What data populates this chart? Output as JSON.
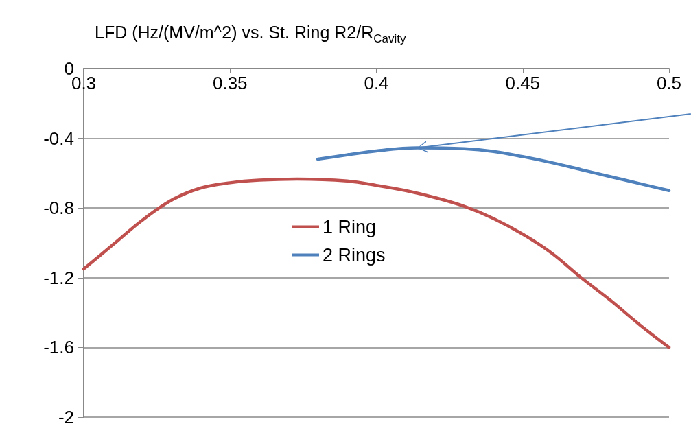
{
  "chart_data": {
    "type": "line",
    "title": "LFD (Hz/(MV/m^2) vs. St. Ring R2/R$_{Cavity}$",
    "xlim": [
      0.3,
      0.5
    ],
    "xticks": [
      0.3,
      0.35,
      0.4,
      0.45,
      0.5
    ],
    "ylim": [
      -2,
      0
    ],
    "yticks": [
      -2,
      -1.6,
      -1.2,
      -0.8,
      -0.4,
      0
    ],
    "grid": "y",
    "legend": "center",
    "marker": "none",
    "line_style": "solid",
    "series": [
      {
        "name": "1 Ring",
        "color": "#c0504d",
        "x": [
          0.3,
          0.31,
          0.32,
          0.33,
          0.34,
          0.35,
          0.36,
          0.373,
          0.39,
          0.4,
          0.41,
          0.42,
          0.43,
          0.44,
          0.45,
          0.46,
          0.47,
          0.48,
          0.49,
          0.5
        ],
        "values": [
          -1.15,
          -1.01,
          -0.87,
          -0.755,
          -0.685,
          -0.655,
          -0.64,
          -0.634,
          -0.645,
          -0.67,
          -0.7,
          -0.74,
          -0.79,
          -0.86,
          -0.95,
          -1.06,
          -1.2,
          -1.33,
          -1.47,
          -1.6
        ]
      },
      {
        "name": "2 Rings",
        "color": "#4f81bd",
        "x": [
          0.38,
          0.39,
          0.4,
          0.414,
          0.43,
          0.44,
          0.45,
          0.46,
          0.47,
          0.48,
          0.49,
          0.5
        ],
        "values": [
          -0.52,
          -0.495,
          -0.472,
          -0.455,
          -0.46,
          -0.475,
          -0.505,
          -0.54,
          -0.58,
          -0.62,
          -0.66,
          -0.7
        ]
      }
    ]
  }
}
